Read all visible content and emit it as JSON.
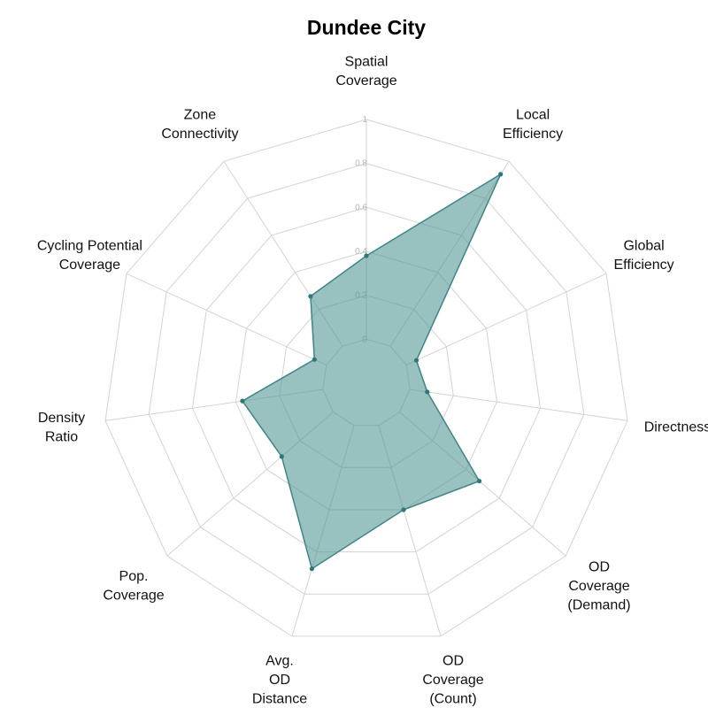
{
  "chart_data": {
    "type": "radar",
    "title": "Dundee City",
    "axes": [
      [
        "Spatial",
        "Coverage"
      ],
      [
        "Local",
        "Efficiency"
      ],
      [
        "Global",
        "Efficiency"
      ],
      [
        "Directness"
      ],
      [
        "OD",
        "Coverage",
        "(Demand)"
      ],
      [
        "OD",
        "Coverage",
        "(Count)"
      ],
      [
        "Avg.",
        "OD",
        "Distance"
      ],
      [
        "Pop.",
        "Coverage"
      ],
      [
        "Density",
        "Ratio"
      ],
      [
        "Cycling Potential",
        "Coverage"
      ],
      [
        "Zone",
        "Connectivity"
      ]
    ],
    "radial_ticks": [
      "0",
      "0.2",
      "0.4",
      "0.6",
      "0.8",
      "1"
    ],
    "rlim": [
      -0.2,
      1
    ],
    "series": [
      {
        "values": [
          0.38,
          0.93,
          0.05,
          0.08,
          0.48,
          0.4,
          0.68,
          0.31,
          0.37,
          0.06,
          0.27
        ]
      }
    ],
    "colors": {
      "fill": "#4f9493",
      "line": "#3f8585",
      "marker": "#2f7878",
      "grid": "#d3d3d3"
    },
    "grid": true
  }
}
